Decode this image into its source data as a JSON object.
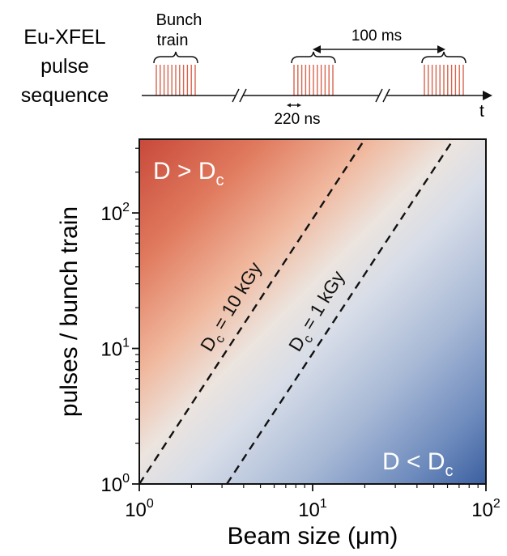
{
  "sequence": {
    "title_lines": [
      "Eu-XFEL",
      "pulse",
      "sequence"
    ],
    "bunch_label_lines": [
      "Bunch",
      "train"
    ],
    "period_label": "100 ms",
    "spacing_label": "220 ns",
    "time_axis_label": "t"
  },
  "plot": {
    "region_high_label": "D > D",
    "region_high_sub": "c",
    "region_low_label": "D < D",
    "region_low_sub": "c",
    "line_10_prefix": "D",
    "line_10_sub": "c",
    "line_10_text": " = 10 kGy",
    "line_1_prefix": "D",
    "line_1_sub": "c",
    "line_1_text": " = 1 kGy",
    "colors": {
      "high": "#c8493a",
      "mid": "#e8e6e4",
      "low": "#3b5fa0",
      "pulse": "#d8634c"
    }
  },
  "chart_data": {
    "type": "heatmap",
    "xlabel": "Beam size (μm)",
    "ylabel": "pulses / bunch train",
    "xscale": "log",
    "yscale": "log",
    "xlim": [
      1,
      100
    ],
    "ylim": [
      1,
      350
    ],
    "x_ticks": [
      {
        "base": "10",
        "exp": "0"
      },
      {
        "base": "10",
        "exp": "1"
      },
      {
        "base": "10",
        "exp": "2"
      }
    ],
    "y_ticks": [
      {
        "base": "10",
        "exp": "0"
      },
      {
        "base": "10",
        "exp": "1"
      },
      {
        "base": "10",
        "exp": "2"
      }
    ],
    "tick_values": [
      1,
      10,
      100
    ],
    "series": [
      {
        "name": "Dc = 10 kGy",
        "x": [
          1,
          20
        ],
        "y": [
          1,
          350
        ]
      },
      {
        "name": "Dc = 1 kGy",
        "x": [
          3.2,
          65
        ],
        "y": [
          1,
          350
        ]
      }
    ]
  }
}
